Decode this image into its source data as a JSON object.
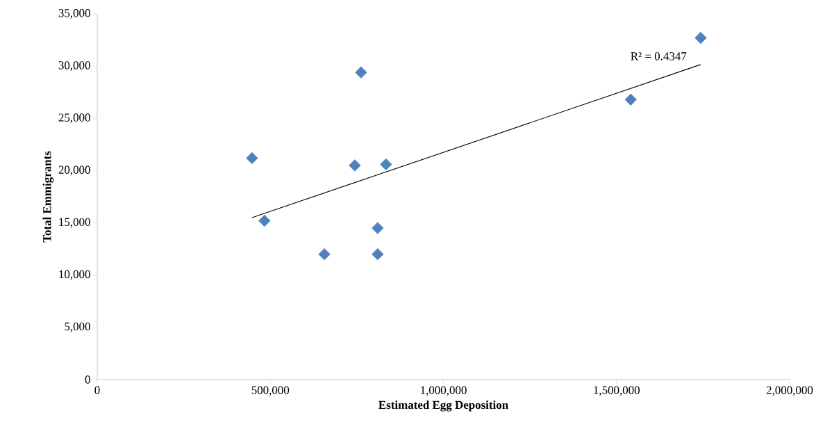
{
  "chart_data": {
    "type": "scatter",
    "xlabel": "Estimated Egg Deposition",
    "ylabel": "Total Emmigrants",
    "xlim": [
      0,
      2000000
    ],
    "ylim": [
      0,
      35000
    ],
    "xticks": [
      0,
      {
        "value": 500000,
        "label": "500,000"
      },
      {
        "value": 1000000,
        "label": "1,000,000"
      },
      {
        "value": 1500000,
        "label": "1,500,000"
      },
      {
        "value": 2000000,
        "label": "2,000,000"
      }
    ],
    "yticks": [
      0,
      {
        "value": 5000,
        "label": "5,000"
      },
      {
        "value": 10000,
        "label": "10,000"
      },
      {
        "value": 15000,
        "label": "15,000"
      },
      {
        "value": 20000,
        "label": "20,000"
      },
      {
        "value": 25000,
        "label": "25,000"
      },
      {
        "value": 30000,
        "label": "30,000"
      },
      {
        "value": 35000,
        "label": "35,000"
      }
    ],
    "grid": false,
    "series": [
      {
        "marker": "diamond",
        "color": "#4f81bd",
        "x": [
          447000,
          483000,
          656000,
          744000,
          762000,
          810000,
          810000,
          834000,
          1541000,
          1743000
        ],
        "values": [
          21200,
          15200,
          12000,
          20500,
          29400,
          14500,
          12000,
          20600,
          26800,
          32700
        ]
      },
      {
        "type": "line",
        "marker": "none",
        "line_style": "solid",
        "color": "#000000",
        "x": [
          447000,
          1743000
        ],
        "values": [
          15500,
          30150
        ]
      }
    ],
    "annotations": [
      {
        "text": "R² = 0.4347",
        "x": 1743000,
        "y": 30150
      }
    ]
  }
}
